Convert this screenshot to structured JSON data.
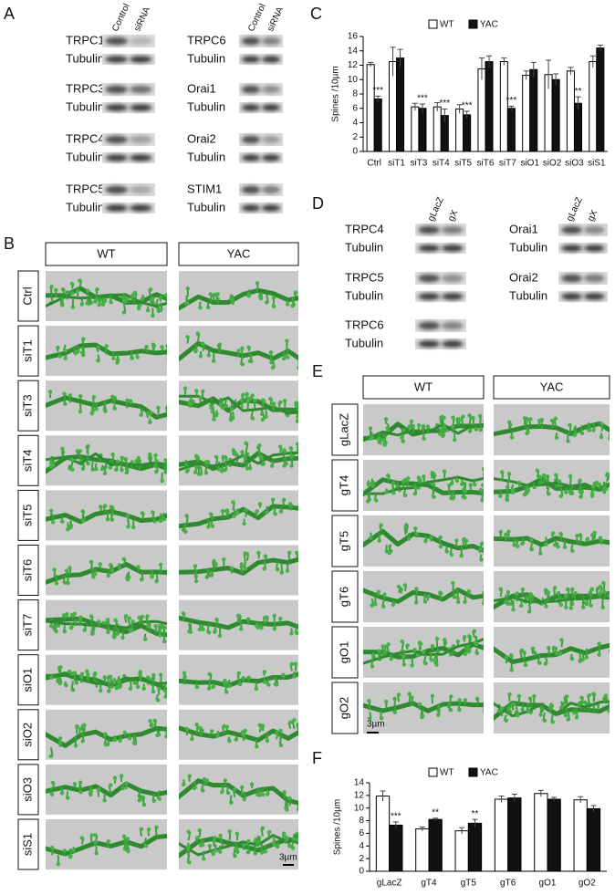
{
  "panel_labels": [
    "A",
    "B",
    "C",
    "D",
    "E",
    "F"
  ],
  "blots_a": {
    "columns": [
      "Control",
      "siRNA"
    ],
    "left": [
      {
        "target": "TRPC1",
        "loading": "Tubulin"
      },
      {
        "target": "TRPC3",
        "loading": "Tubulin"
      },
      {
        "target": "TRPC4",
        "loading": "Tubulin"
      },
      {
        "target": "TRPC5",
        "loading": "Tubulin"
      }
    ],
    "right": [
      {
        "target": "TRPC6",
        "loading": "Tubulin"
      },
      {
        "target": "Orai1",
        "loading": "Tubulin"
      },
      {
        "target": "Orai2",
        "loading": "Tubulin"
      },
      {
        "target": "STIM1",
        "loading": "Tubulin"
      }
    ]
  },
  "blots_d": {
    "columns": [
      "gLacZ",
      "gX"
    ],
    "left": [
      {
        "target": "TRPC4",
        "loading": "Tubulin"
      },
      {
        "target": "TRPC5",
        "loading": "Tubulin"
      },
      {
        "target": "TRPC6",
        "loading": "Tubulin"
      }
    ],
    "right": [
      {
        "target": "Orai1",
        "loading": "Tubulin"
      },
      {
        "target": "Orai2",
        "loading": "Tubulin"
      }
    ]
  },
  "images_b": {
    "columns": [
      "WT",
      "YAC"
    ],
    "rows": [
      "Ctrl",
      "siT1",
      "siT3",
      "siT4",
      "siT5",
      "siT6",
      "siT7",
      "siO1",
      "siO2",
      "siO3",
      "siS1"
    ],
    "scale_bar": "3µm"
  },
  "images_e": {
    "columns": [
      "WT",
      "YAC"
    ],
    "rows": [
      "gLacZ",
      "gT4",
      "gT5",
      "gT6",
      "gO1",
      "gO2"
    ],
    "scale_bar": "3µm"
  },
  "chart_data": [
    {
      "type": "bar",
      "ylabel": "Spines /10µm",
      "categories": [
        "Ctrl",
        "siT1",
        "siT3",
        "siT4",
        "siT5",
        "siT6",
        "siT7",
        "siO1",
        "siO2",
        "siO3",
        "siS1"
      ],
      "series": [
        {
          "name": "WT",
          "color": "#ffffff",
          "values": [
            12.1,
            12.5,
            6.2,
            6.2,
            5.9,
            11.5,
            12.5,
            10.6,
            10.7,
            11.2,
            12.5
          ],
          "errors": [
            0.3,
            2.0,
            0.5,
            0.6,
            0.6,
            1.5,
            0.5,
            0.6,
            2.0,
            0.5,
            0.8
          ]
        },
        {
          "name": "YAC",
          "color": "#111111",
          "values": [
            7.3,
            13.0,
            6.0,
            5.0,
            5.1,
            12.5,
            6.0,
            11.4,
            10.0,
            6.7,
            14.4
          ],
          "errors": [
            0.4,
            1.2,
            0.6,
            0.9,
            0.5,
            0.8,
            0.3,
            1.0,
            0.8,
            0.9,
            0.4
          ]
        }
      ],
      "significance": [
        "***",
        null,
        "***",
        "***",
        "***",
        null,
        "***",
        null,
        null,
        "**",
        null
      ],
      "ylim": [
        0,
        16
      ],
      "yticks": [
        0,
        2,
        4,
        6,
        8,
        10,
        12,
        14,
        16
      ],
      "legend": "top"
    },
    {
      "type": "bar",
      "ylabel": "Spines /10µm",
      "categories": [
        "gLacZ",
        "gT4",
        "gT5",
        "gT6",
        "gO1",
        "gO2"
      ],
      "series": [
        {
          "name": "WT",
          "color": "#ffffff",
          "values": [
            11.9,
            6.7,
            6.4,
            11.4,
            12.3,
            11.3
          ],
          "errors": [
            0.8,
            0.3,
            0.5,
            0.5,
            0.5,
            0.5
          ]
        },
        {
          "name": "YAC",
          "color": "#111111",
          "values": [
            7.3,
            8.2,
            7.6,
            11.6,
            11.4,
            9.9
          ],
          "errors": [
            0.5,
            0.2,
            0.6,
            0.6,
            0.3,
            0.5
          ]
        }
      ],
      "significance": [
        "***",
        "**",
        "**",
        null,
        null,
        null
      ],
      "ylim": [
        0,
        14
      ],
      "yticks": [
        0,
        2,
        4,
        6,
        8,
        10,
        12,
        14
      ],
      "legend": "top"
    }
  ]
}
